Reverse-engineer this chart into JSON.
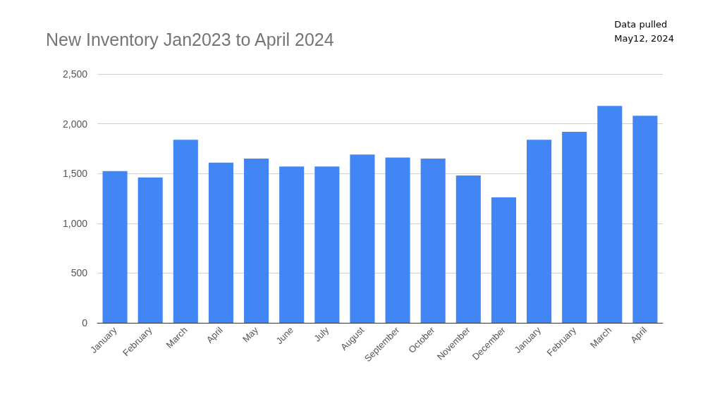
{
  "chart_data": {
    "type": "bar",
    "title": "New Inventory Jan2023 to April 2024",
    "annotations": [
      "Data pulled\nMay12, 2024"
    ],
    "categories": [
      "January",
      "February",
      "March",
      "April",
      "May",
      "June",
      "July",
      "August",
      "September",
      "October",
      "November",
      "December",
      "January",
      "February",
      "March",
      "April"
    ],
    "values": [
      1525,
      1460,
      1840,
      1610,
      1650,
      1570,
      1570,
      1690,
      1660,
      1650,
      1480,
      1260,
      1840,
      1920,
      2180,
      2080
    ],
    "color": "#4285f4",
    "ylim": [
      0,
      2500
    ],
    "yticks": [
      0,
      500,
      {
        "value": 1000,
        "label": "1,000"
      },
      {
        "value": 1500,
        "label": "1,500"
      },
      {
        "value": 2000,
        "label": "2,000"
      },
      {
        "value": 2500,
        "label": "2,500"
      }
    ],
    "grid": "y"
  }
}
